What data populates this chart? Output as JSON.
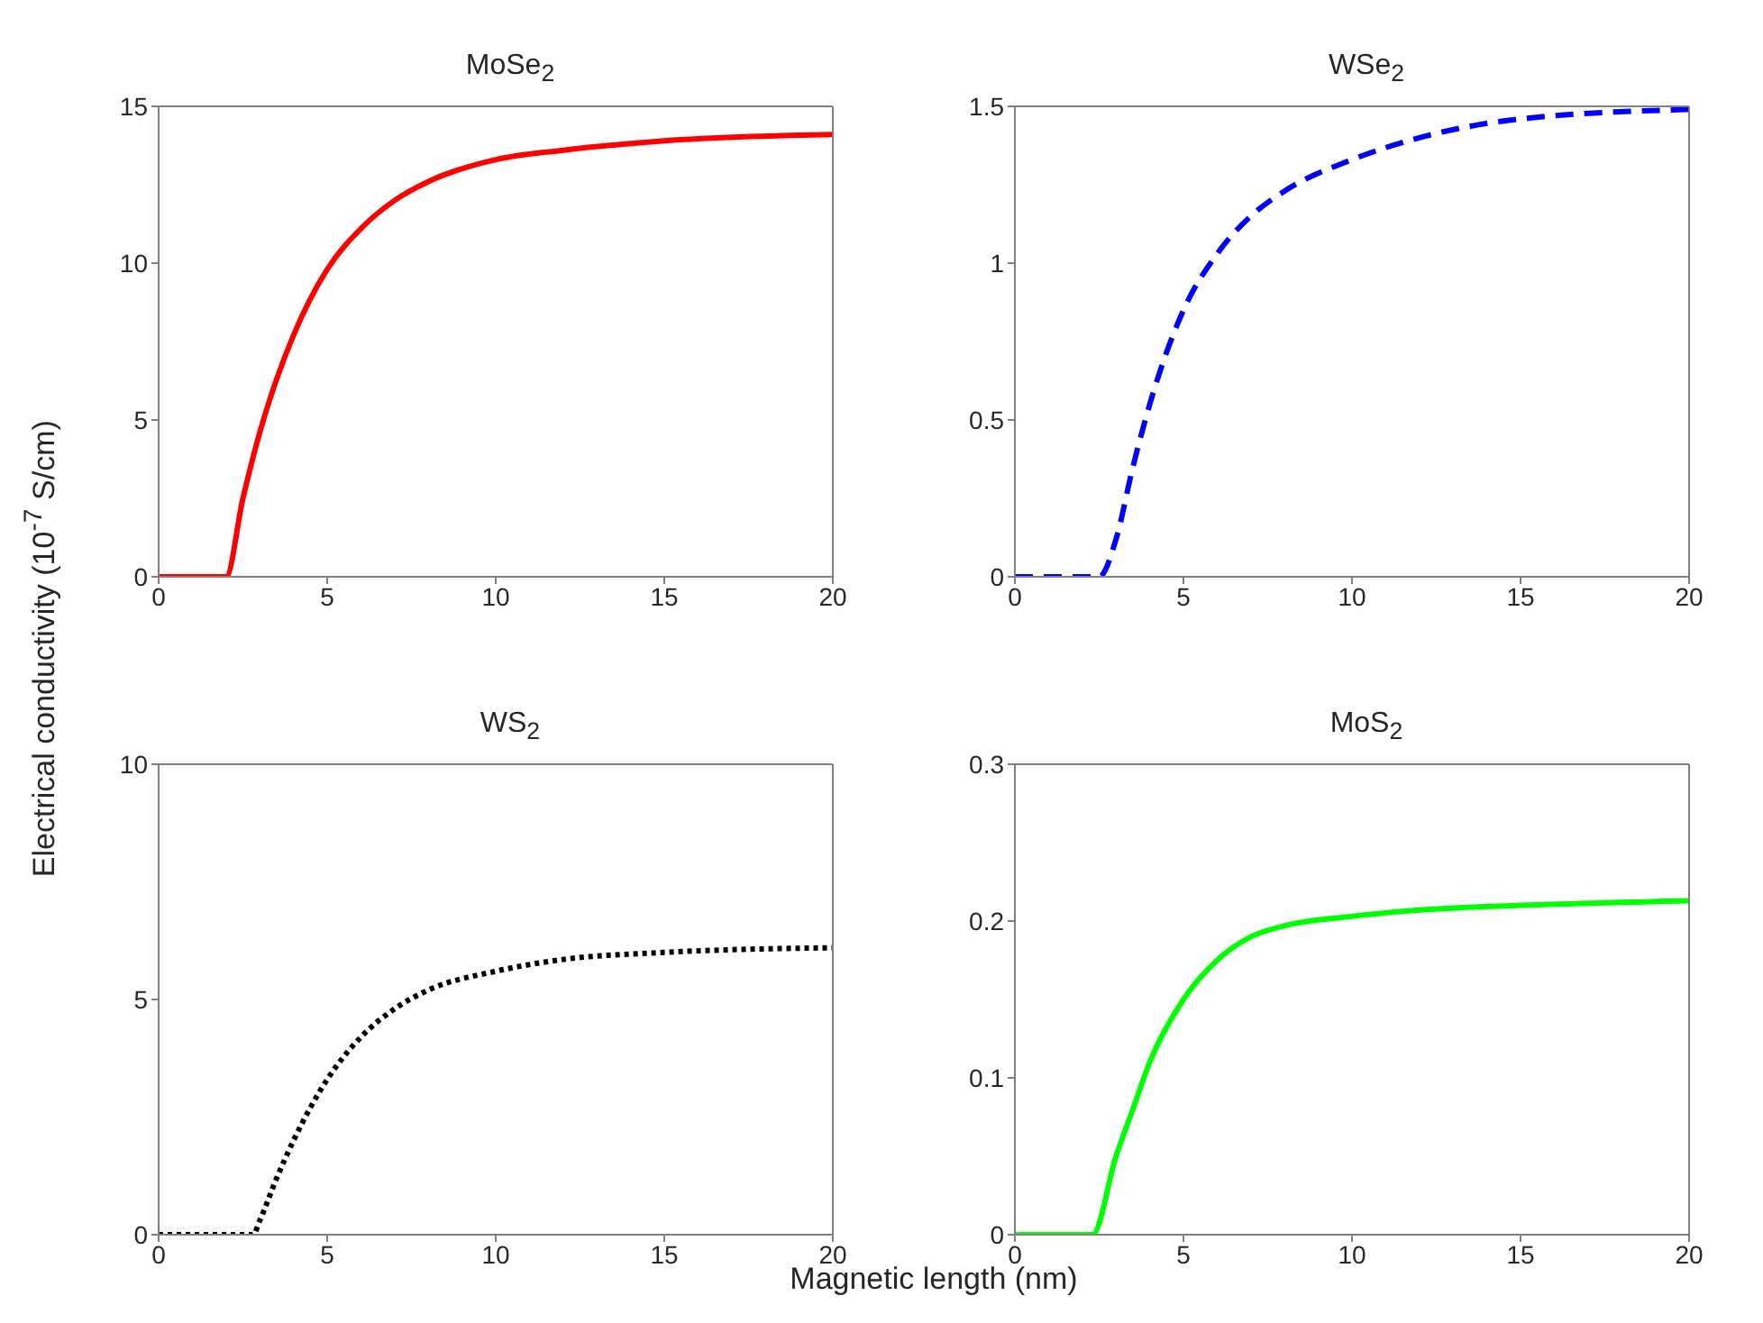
{
  "chart_data": [
    {
      "type": "line",
      "title": "MoSe$_{2}$",
      "ylabel": "Electrical conductivity (10$^{-7}$ S/cm)",
      "x": [
        0,
        1,
        2,
        2.5,
        3,
        3.5,
        4,
        5,
        6,
        7,
        8,
        10,
        12,
        15,
        20
      ],
      "xlim": [
        0,
        20
      ],
      "xticks": [
        0,
        5,
        10,
        15,
        20
      ],
      "ylim": [
        0,
        15
      ],
      "yticks": [
        0,
        5,
        10,
        15
      ],
      "line_style": "solid",
      "series": [
        {
          "color": "#ff0000",
          "values": [
            0,
            0,
            0,
            2.5,
            4.6,
            6.3,
            7.7,
            9.8,
            11.1,
            12.0,
            12.6,
            13.3,
            13.6,
            13.9,
            14.1
          ]
        }
      ]
    },
    {
      "type": "line",
      "title": "WSe$_{2}$",
      "x": [
        0,
        1,
        2,
        2.5,
        3,
        3.5,
        4,
        5,
        6,
        7,
        8,
        10,
        12,
        15,
        20
      ],
      "xlim": [
        0,
        20
      ],
      "xticks": [
        0,
        5,
        10,
        15,
        20
      ],
      "ylim": [
        0,
        1.5
      ],
      "yticks": [
        0,
        0.5,
        1,
        1.5
      ],
      "line_style": "dashed",
      "series": [
        {
          "color": "#0000ff",
          "values": [
            0,
            0,
            0,
            0,
            0.12,
            0.35,
            0.55,
            0.85,
            1.03,
            1.15,
            1.23,
            1.33,
            1.4,
            1.46,
            1.49
          ]
        }
      ]
    },
    {
      "type": "line",
      "title": "WS$_{2}$",
      "xlabel": "Magnetic length (nm)",
      "x": [
        0,
        1,
        2,
        2.8,
        3,
        3.5,
        4,
        5,
        6,
        7,
        8,
        10,
        12,
        15,
        20
      ],
      "xlim": [
        0,
        20
      ],
      "xticks": [
        0,
        5,
        10,
        15,
        20
      ],
      "ylim": [
        0,
        10
      ],
      "yticks": [
        0,
        5,
        10
      ],
      "line_style": "dotted",
      "series": [
        {
          "color": "#000000",
          "values": [
            0,
            0,
            0,
            0,
            0.3,
            1.2,
            2.0,
            3.3,
            4.2,
            4.8,
            5.2,
            5.6,
            5.85,
            6.0,
            6.1
          ]
        }
      ]
    },
    {
      "type": "line",
      "title": "MoS$_{2}$",
      "x": [
        0,
        1,
        2,
        2.3,
        3,
        3.5,
        4,
        5,
        6,
        7,
        8,
        10,
        12,
        15,
        20
      ],
      "xlim": [
        0,
        20
      ],
      "xticks": [
        0,
        5,
        10,
        15,
        20
      ],
      "ylim": [
        0,
        0.3
      ],
      "yticks": [
        0,
        0.1,
        0.2,
        0.3
      ],
      "line_style": "solid",
      "series": [
        {
          "color": "#00ff00",
          "values": [
            0,
            0,
            0,
            0,
            0.05,
            0.08,
            0.11,
            0.15,
            0.175,
            0.19,
            0.197,
            0.203,
            0.207,
            0.21,
            0.213
          ]
        }
      ]
    }
  ]
}
